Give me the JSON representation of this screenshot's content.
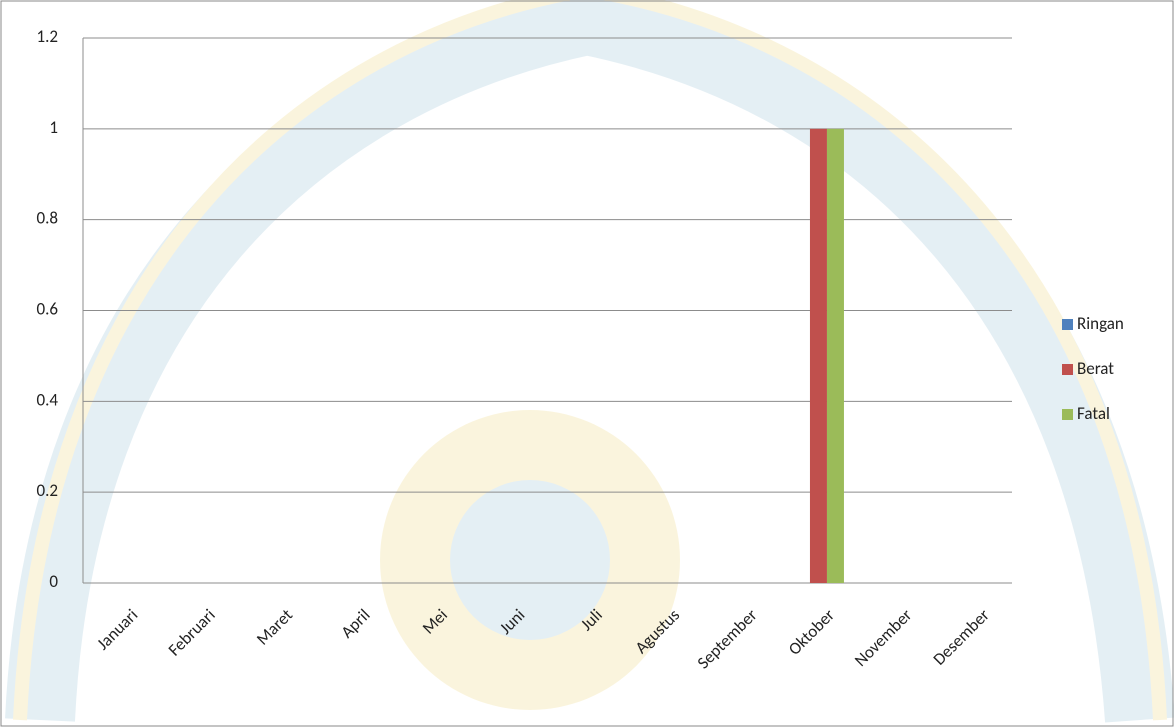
{
  "chart_data": {
    "type": "bar",
    "categories": [
      "Januari",
      "Februari",
      "Maret",
      "April",
      "Mei",
      "Juni",
      "Juli",
      "Agustus",
      "September",
      "Oktober",
      "November",
      "Desember"
    ],
    "series": [
      {
        "name": "Ringan",
        "color": "#4f81bd",
        "values": [
          0,
          0,
          0,
          0,
          0,
          0,
          0,
          0,
          0,
          0,
          0,
          0
        ]
      },
      {
        "name": "Berat",
        "color": "#c0504d",
        "values": [
          0,
          0,
          0,
          0,
          0,
          0,
          0,
          0,
          0,
          1,
          0,
          0
        ]
      },
      {
        "name": "Fatal",
        "color": "#9bbb59",
        "values": [
          0,
          0,
          0,
          0,
          0,
          0,
          0,
          0,
          0,
          1,
          0,
          0
        ]
      }
    ],
    "ylim": [
      0,
      1.2
    ],
    "yticks": [
      0,
      0.2,
      0.4,
      0.6,
      0.8,
      1,
      1.2
    ],
    "grid": true,
    "legend": "right"
  }
}
